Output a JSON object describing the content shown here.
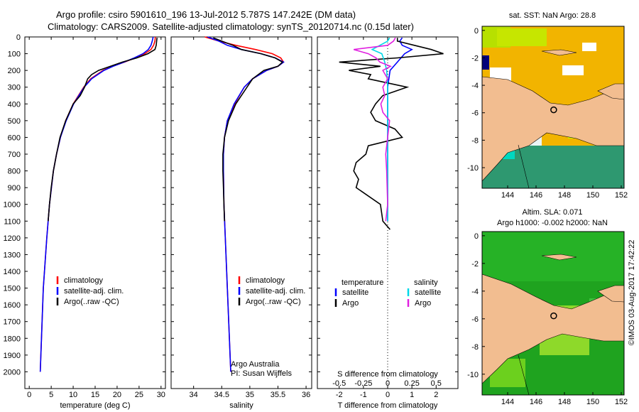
{
  "header": {
    "line1": "Argo profile: csiro 5901610_196 13-Jul-2012 5.787S 147.242E (DM data)",
    "line2": "Climatology: CARS2009. Satellite-adjusted climatology: synTS_20120714.nc (0.15d later)"
  },
  "chart_data": [
    {
      "type": "line",
      "title": "",
      "xlabel": "temperature (deg C)",
      "ylabel": "",
      "xlim": [
        -1,
        31
      ],
      "ylim": [
        2100,
        0
      ],
      "xticks": [
        0,
        5,
        10,
        15,
        20,
        25,
        30
      ],
      "yticks": [
        0,
        100,
        200,
        300,
        400,
        500,
        600,
        700,
        800,
        900,
        1000,
        1100,
        1200,
        1300,
        1400,
        1500,
        1600,
        1700,
        1800,
        1900,
        2000
      ],
      "legend": [
        "climatology",
        "satellite-adj. clim.",
        "Argo(..raw -QC)"
      ],
      "series": [
        {
          "name": "climatology",
          "color": "#ff0000",
          "depth": [
            0,
            25,
            50,
            75,
            100,
            125,
            150,
            175,
            200,
            250,
            300,
            400,
            500,
            600,
            700,
            800,
            1000,
            1200,
            1500,
            2000
          ],
          "values": [
            28.7,
            28.6,
            28.3,
            27.7,
            26.3,
            24.1,
            21.7,
            19.0,
            16.8,
            14.0,
            12.4,
            10.0,
            8.3,
            7.1,
            6.2,
            5.5,
            4.6,
            4.0,
            3.2,
            2.5
          ]
        },
        {
          "name": "satellite-adj. clim.",
          "color": "#0000ff",
          "depth": [
            0,
            25,
            50,
            75,
            100,
            125,
            150,
            175,
            200,
            250,
            300,
            400,
            500,
            600,
            700,
            800,
            1000,
            1200,
            1500,
            2000
          ],
          "values": [
            28.2,
            28.0,
            27.7,
            27.1,
            25.9,
            23.9,
            21.6,
            19.1,
            17.0,
            14.2,
            12.5,
            10.1,
            8.4,
            7.1,
            6.2,
            5.5,
            4.6,
            4.0,
            3.2,
            2.5
          ]
        },
        {
          "name": "Argo(..raw -QC)",
          "color": "#000000",
          "depth": [
            5,
            25,
            50,
            75,
            100,
            125,
            150,
            175,
            200,
            225,
            250,
            300,
            350,
            400,
            500,
            600,
            700,
            800,
            900,
            1000,
            1100
          ],
          "values": [
            29.1,
            29.0,
            28.9,
            28.6,
            27.0,
            24.5,
            21.2,
            18.5,
            15.8,
            14.2,
            13.3,
            12.6,
            11.6,
            10.0,
            8.3,
            7.0,
            6.2,
            5.5,
            5.0,
            4.6,
            4.3
          ]
        }
      ]
    },
    {
      "type": "line",
      "title": "",
      "xlabel": "salinity",
      "ylabel": "",
      "xlim": [
        33.6,
        36.1
      ],
      "ylim": [
        2100,
        0
      ],
      "xticks": [
        34,
        34.5,
        35,
        35.5,
        36
      ],
      "legend": [
        "climatology",
        "satellite-adj. clim.",
        "Argo(..raw -QC)"
      ],
      "annotation": [
        "Argo Australia",
        "PI: Susan Wijffels"
      ],
      "series": [
        {
          "name": "climatology",
          "color": "#ff0000",
          "depth": [
            0,
            25,
            50,
            75,
            100,
            125,
            150,
            175,
            200,
            250,
            300,
            400,
            500,
            600,
            700,
            800,
            1000,
            1500,
            2000
          ],
          "values": [
            34.2,
            34.45,
            34.75,
            35.1,
            35.4,
            35.55,
            35.6,
            35.5,
            35.3,
            35.05,
            34.9,
            34.73,
            34.6,
            34.55,
            34.53,
            34.53,
            34.54,
            34.6,
            34.66
          ]
        },
        {
          "name": "satellite-adj. clim.",
          "color": "#0000ff",
          "depth": [
            0,
            25,
            50,
            75,
            100,
            125,
            150,
            175,
            200,
            250,
            300,
            400,
            500,
            600,
            700,
            800,
            1000,
            1500,
            2000
          ],
          "values": [
            34.25,
            34.45,
            34.6,
            34.85,
            35.2,
            35.45,
            35.6,
            35.5,
            35.3,
            35.05,
            34.9,
            34.72,
            34.6,
            34.55,
            34.53,
            34.53,
            34.54,
            34.6,
            34.66
          ]
        },
        {
          "name": "Argo(..raw -QC)",
          "color": "#000000",
          "depth": [
            5,
            25,
            50,
            75,
            100,
            125,
            150,
            175,
            200,
            250,
            300,
            400,
            500,
            600,
            700,
            800,
            900,
            1000,
            1100
          ],
          "values": [
            34.35,
            34.5,
            34.7,
            34.85,
            35.2,
            35.45,
            35.58,
            35.5,
            35.25,
            35.05,
            34.95,
            34.75,
            34.62,
            34.55,
            34.52,
            34.52,
            34.53,
            34.54,
            34.55
          ]
        }
      ]
    },
    {
      "type": "line",
      "title": "",
      "xlabel": "T difference from climatology",
      "xlabel_top": "S difference from climatology",
      "xlim": [
        -2.9,
        2.9
      ],
      "ylim": [
        2100,
        0
      ],
      "xticks": [
        -2,
        -1,
        0,
        1,
        2
      ],
      "xticks_top": [
        -0.5,
        -0.25,
        0,
        0.25,
        0.5
      ],
      "legend_headers": [
        "temperature",
        "salinity"
      ],
      "legend": [
        "satellite",
        "Argo",
        "satellite",
        "Argo"
      ],
      "series": [
        {
          "name": "temperature satellite",
          "color": "#0000ff",
          "depth": [
            5,
            25,
            50,
            75,
            100,
            150,
            200,
            300,
            400,
            500,
            600,
            800,
            1000,
            1100
          ],
          "values": [
            0.6,
            0.5,
            0.6,
            1.0,
            0.7,
            0.4,
            0.1,
            0.0,
            0.0,
            0.0,
            0.0,
            0.0,
            0.0,
            0.0
          ]
        },
        {
          "name": "temperature Argo",
          "color": "#000000",
          "depth": [
            5,
            25,
            50,
            75,
            100,
            125,
            150,
            175,
            200,
            225,
            250,
            300,
            350,
            400,
            450,
            500,
            550,
            600,
            650,
            700,
            750,
            800,
            850,
            900,
            1000,
            1100,
            1150
          ],
          "values": [
            0.4,
            0.4,
            1.1,
            1.8,
            2.3,
            0.4,
            -2.0,
            -0.3,
            -1.6,
            -0.7,
            -0.8,
            0.8,
            -0.2,
            -0.5,
            -0.7,
            -0.5,
            0.3,
            0.6,
            -0.8,
            -0.9,
            -1.3,
            -1.4,
            -1.2,
            -1.3,
            -0.3,
            -0.2,
            0.1
          ]
        },
        {
          "name": "salinity satellite",
          "color": "#00d8e8",
          "depth": [
            5,
            25,
            50,
            75,
            100,
            150,
            200,
            300,
            400,
            500,
            600,
            800,
            1000,
            1100
          ],
          "values": [
            0.02,
            0.0,
            -0.08,
            -0.16,
            -0.06,
            -0.03,
            -0.01,
            0.0,
            0.0,
            0.0,
            0.0,
            0.0,
            0.0,
            0.0
          ]
        },
        {
          "name": "salinity Argo",
          "color": "#e020e0",
          "depth": [
            5,
            25,
            50,
            75,
            100,
            125,
            150,
            175,
            200,
            250,
            300,
            350,
            400,
            450,
            500,
            600,
            700,
            800,
            1000,
            1100
          ],
          "values": [
            0.08,
            0.06,
            0.0,
            -0.35,
            -0.2,
            -0.12,
            -0.08,
            0.03,
            -0.05,
            0.0,
            -0.05,
            -0.03,
            -0.07,
            -0.05,
            0.02,
            0.0,
            -0.02,
            -0.01,
            0.0,
            -0.02
          ]
        }
      ]
    },
    {
      "type": "heatmap",
      "title": "sat. SST: NaN Argo: 28.8",
      "xlim": [
        142.2,
        152.2
      ],
      "ylim": [
        -11.5,
        0.3
      ],
      "xticks": [
        144,
        146,
        148,
        150,
        152
      ],
      "yticks": [
        0,
        -2,
        -4,
        -6,
        -8,
        -10
      ],
      "marker": [
        147.242,
        -5.787
      ]
    },
    {
      "type": "heatmap",
      "title": "Altim. SLA: 0.071",
      "subtitle": "Argo h1000: -0.002 h2000: NaN",
      "xlim": [
        142.2,
        152.2
      ],
      "ylim": [
        -11.5,
        0.3
      ],
      "xticks": [
        144,
        146,
        148,
        150,
        152
      ],
      "yticks": [
        0,
        -2,
        -4,
        -6,
        -8,
        -10
      ],
      "marker": [
        147.242,
        -5.787
      ]
    }
  ],
  "footer": {
    "stamp": "©IMOS 03-Aug-2017 17:42:22"
  }
}
